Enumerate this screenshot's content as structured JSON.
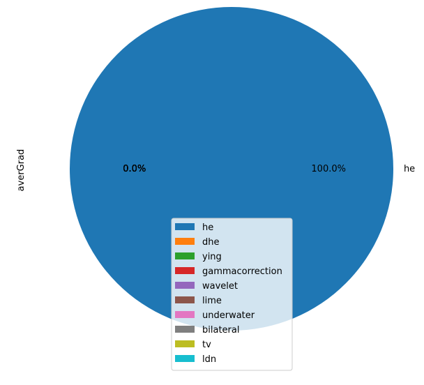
{
  "chart_data": {
    "type": "pie",
    "ylabel": "averGrad",
    "categories": [
      "he",
      "dhe",
      "ying",
      "gammacorrection",
      "wavelet",
      "lime",
      "underwater",
      "bilateral",
      "tv",
      "ldn"
    ],
    "values": [
      100.0,
      0.0,
      0.0,
      0.0,
      0.0,
      0.0,
      0.0,
      0.0,
      0.0,
      0.0
    ],
    "colors": [
      "#1f77b4",
      "#ff7f0e",
      "#2ca02c",
      "#d62728",
      "#9467bd",
      "#8c564b",
      "#e377c2",
      "#7f7f7f",
      "#bcbd22",
      "#17becf"
    ],
    "slice_labels": [
      "he"
    ],
    "pct_labels": [
      "100.0%",
      "0.0%"
    ],
    "legend_entries": [
      "he",
      "dhe",
      "ying",
      "gammacorrection",
      "wavelet",
      "lime",
      "underwater",
      "bilateral",
      "tv",
      "ldn"
    ],
    "legend_loc": "lower-center",
    "start_angle": "left"
  }
}
